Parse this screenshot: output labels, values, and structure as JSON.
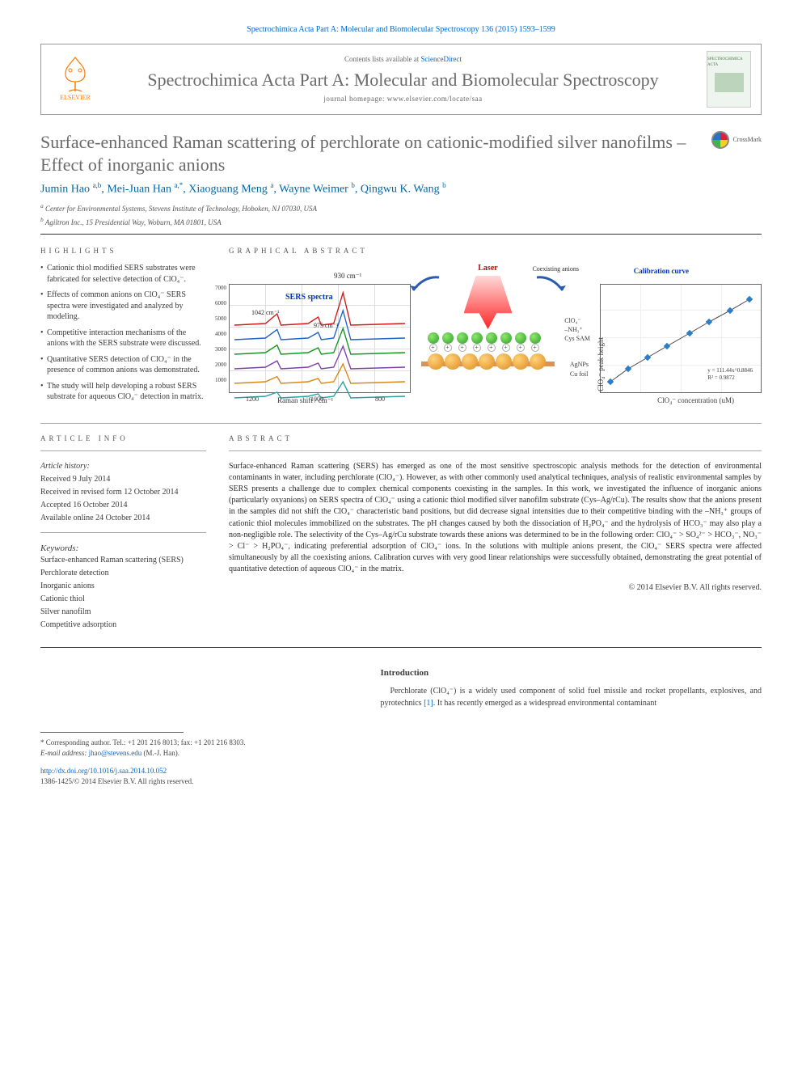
{
  "citation": "Spectrochimica Acta Part A: Molecular and Biomolecular Spectroscopy 136 (2015) 1593–1599",
  "header": {
    "publisher": "ELSEVIER",
    "contents_prefix": "Contents lists available at ",
    "contents_link": "ScienceDirect",
    "journal_name": "Spectrochimica Acta Part A: Molecular and Biomolecular Spectroscopy",
    "homepage_prefix": "journal homepage: ",
    "homepage_url": "www.elsevier.com/locate/saa",
    "thumb_text": "SPECTROCHIMICA ACTA"
  },
  "crossmark_label": "CrossMark",
  "title": "Surface-enhanced Raman scattering of perchlorate on cationic-modified silver nanofilms – Effect of inorganic anions",
  "authors_html": "Jumin Hao <sup>a,b</sup>, Mei-Juan Han <sup>a,*</sup>, Xiaoguang Meng <sup>a</sup>, Wayne Weimer <sup>b</sup>, Qingwu K. Wang <sup>b</sup>",
  "affiliations": [
    "a Center for Environmental Systems, Stevens Institute of Technology, Hoboken, NJ 07030, USA",
    "b Agiltron Inc., 15 Presidential Way, Woburn, MA 01801, USA"
  ],
  "highlights_heading": "HIGHLIGHTS",
  "highlights": [
    "Cationic thiol modified SERS substrates were fabricated for selective detection of ClO₄⁻.",
    "Effects of common anions on ClO₄⁻ SERS spectra were investigated and analyzed by modeling.",
    "Competitive interaction mechanisms of the anions with the SERS substrate were discussed.",
    "Quantitative SERS detection of ClO₄⁻ in the presence of common anions was demonstrated.",
    "The study will help developing a robust SERS substrate for aqueous ClO₄⁻ detection in matrix."
  ],
  "graphical_heading": "GRAPHICAL ABSTRACT",
  "ga": {
    "sers": {
      "label": "SERS spectra",
      "peak_930": "930 cm⁻¹",
      "peak_1042": "1042 cm⁻¹",
      "peak_975": "975 cm⁻¹",
      "xlabel": "Raman shift / cm⁻¹",
      "xticks": [
        "1200",
        "1000",
        "800"
      ],
      "yticks": [
        "7000",
        "6000",
        "5000",
        "4000",
        "3000",
        "2000",
        "1000"
      ],
      "line_colors": [
        "#d01818",
        "#1e62c9",
        "#11981b",
        "#7e3fa8",
        "#d8871a",
        "#2aa0a0"
      ]
    },
    "center": {
      "laser": "Laser",
      "coexisting": "Coexisting anions",
      "clo4": "ClO₄⁻",
      "nh3": "–NH₃⁺",
      "cyssam": "Cys SAM",
      "agnps": "AgNPs",
      "cufoil": "Cu foil",
      "green_color": "#47c247",
      "ag_color": "#e69a2f",
      "laser_color": "#e11919"
    },
    "cal": {
      "label": "Calibration curve",
      "xlabel": "ClO₄⁻ concentration (uM)",
      "ylabel": "ClO₄⁻ peak height",
      "xticks": [
        "1",
        "10",
        "100"
      ],
      "yticks": [
        "100000",
        "10000",
        "1000",
        "100"
      ],
      "eq1": "y = 111.44x^0.8846",
      "eq2": "R² = 0.9872",
      "points": [
        [
          12,
          120
        ],
        [
          34,
          104
        ],
        [
          58,
          90
        ],
        [
          82,
          76
        ],
        [
          110,
          60
        ],
        [
          134,
          46
        ],
        [
          160,
          32
        ],
        [
          184,
          18
        ]
      ],
      "point_color": "#2c7ec9",
      "line_color": "#444444"
    }
  },
  "article_info_heading": "ARTICLE INFO",
  "article_history_label": "Article history:",
  "article_history": [
    "Received 9 July 2014",
    "Received in revised form 12 October 2014",
    "Accepted 16 October 2014",
    "Available online 24 October 2014"
  ],
  "keywords_label": "Keywords:",
  "keywords": [
    "Surface-enhanced Raman scattering (SERS)",
    "Perchlorate detection",
    "Inorganic anions",
    "Cationic thiol",
    "Silver nanofilm",
    "Competitive adsorption"
  ],
  "abstract_heading": "ABSTRACT",
  "abstract_text": "Surface-enhanced Raman scattering (SERS) has emerged as one of the most sensitive spectroscopic analysis methods for the detection of environmental contaminants in water, including perchlorate (ClO₄⁻). However, as with other commonly used analytical techniques, analysis of realistic environmental samples by SERS presents a challenge due to complex chemical components coexisting in the samples. In this work, we investigated the influence of inorganic anions (particularly oxyanions) on SERS spectra of ClO₄⁻ using a cationic thiol modified silver nanofilm substrate (Cys–Ag/rCu). The results show that the anions present in the samples did not shift the ClO₄⁻ characteristic band positions, but did decrease signal intensities due to their competitive binding with the –NH₃⁺ groups of cationic thiol molecules immobilized on the substrates. The pH changes caused by both the dissociation of H₂PO₄⁻ and the hydrolysis of HCO₃⁻ may also play a non-negligible role. The selectivity of the Cys–Ag/rCu substrate towards these anions was determined to be in the following order: ClO₄⁻ > SO₄²⁻ > HCO₃⁻, NO₃⁻ > Cl⁻ > H₂PO₄⁻, indicating preferential adsorption of ClO₄⁻ ions. In the solutions with multiple anions present, the ClO₄⁻ SERS spectra were affected simultaneously by all the coexisting anions. Calibration curves with very good linear relationships were successfully obtained, demonstrating the great potential of quantitative detection of aqueous ClO₄⁻ in the matrix.",
  "abstract_copyright": "© 2014 Elsevier B.V. All rights reserved.",
  "footnote": {
    "corresponding": "* Corresponding author. Tel.: +1 201 216 8013; fax: +1 201 216 8303.",
    "email_label": "E-mail address:",
    "email": "jhao@stevens.edu",
    "email_name": "(M.-J. Han)."
  },
  "doi": "http://dx.doi.org/10.1016/j.saa.2014.10.052",
  "foot_copyright": "1386-1425/© 2014 Elsevier B.V. All rights reserved.",
  "introduction_heading": "Introduction",
  "introduction_text": "Perchlorate (ClO₄⁻) is a widely used component of solid fuel missile and rocket propellants, explosives, and pyrotechnics [1]. It has recently emerged as a widespread environmental contaminant"
}
